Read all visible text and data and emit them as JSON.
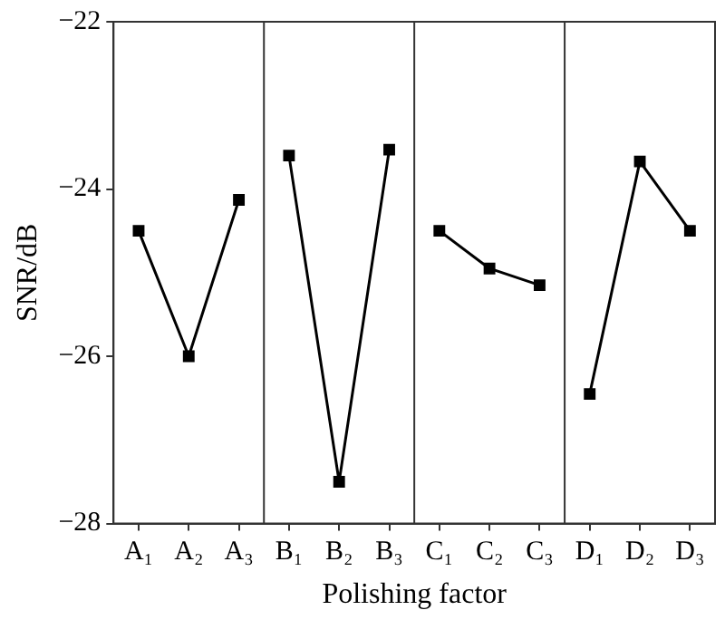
{
  "chart_data": {
    "type": "line",
    "xlabel": "Polishing factor",
    "ylabel": "SNR/dB",
    "categories": [
      "A₁",
      "A₂",
      "A₃",
      "B₁",
      "B₂",
      "B₃",
      "C₁",
      "C₂",
      "C₃",
      "D₁",
      "D₂",
      "D₃"
    ],
    "series": [
      {
        "color": "#000000",
        "values": [
          -24.5,
          -26.0,
          -24.13,
          null,
          null,
          null,
          null,
          null,
          null,
          null,
          null,
          null
        ]
      },
      {
        "color": "#000000",
        "values": [
          null,
          null,
          null,
          -23.6,
          -27.5,
          -23.53,
          null,
          null,
          null,
          null,
          null,
          null
        ]
      },
      {
        "color": "#000000",
        "values": [
          null,
          null,
          null,
          null,
          null,
          null,
          -24.5,
          -24.95,
          -25.15,
          null,
          null,
          null
        ]
      },
      {
        "color": "#000000",
        "values": [
          null,
          null,
          null,
          null,
          null,
          null,
          null,
          null,
          null,
          -26.45,
          -23.67,
          -24.5
        ]
      }
    ],
    "ylim": [
      -28,
      -22
    ],
    "yticks": [
      -28,
      -26,
      -24,
      -22
    ],
    "grid": false,
    "legend": false,
    "marker": "square",
    "line_style": "solid"
  }
}
